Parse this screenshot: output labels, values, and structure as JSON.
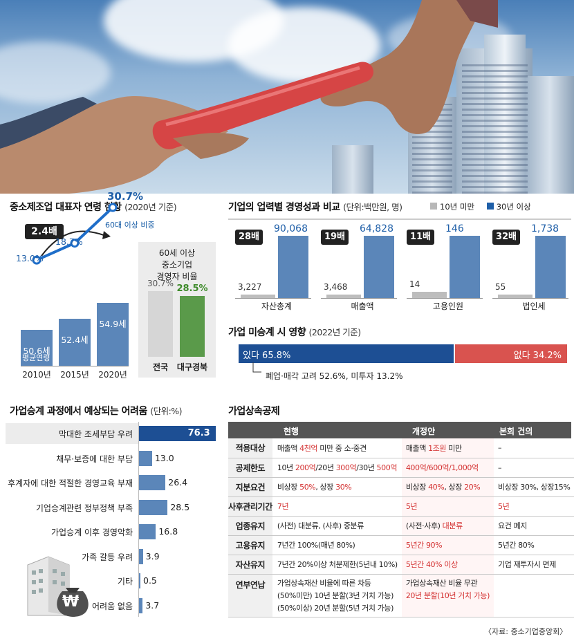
{
  "age_chart": {
    "title": "중소제조업 대표자 연령 현황",
    "title_note": "(2020년 기준)",
    "multiplier": "2.4배",
    "years": [
      "2010년",
      "2015년",
      "2020년"
    ],
    "avg_ages": [
      "50.6세",
      "52.4세",
      "54.9세"
    ],
    "avg_label": "평균연령",
    "share_note": "60대 이상 비중",
    "share_labels": [
      "13.0%",
      "18.7%",
      "30.7%"
    ],
    "side_box": {
      "title_lines": [
        "60세 이상",
        "중소기업",
        "경영자 비율"
      ],
      "labels": [
        "30.7%",
        "28.5%"
      ],
      "categories": [
        "전국",
        "대구경북"
      ]
    }
  },
  "compare_chart": {
    "title": "기업의 업력별 경영성과 비교",
    "unit_note": "(단위:백만원, 명)",
    "legend": [
      "10년 미만",
      "30년 이상"
    ],
    "groups": [
      {
        "name": "자산총계",
        "multiplier": "28배",
        "low": "3,227",
        "high": "90,068"
      },
      {
        "name": "매출액",
        "multiplier": "19배",
        "low": "3,468",
        "high": "64,828"
      },
      {
        "name": "고용인원",
        "multiplier": "11배",
        "low": "14",
        "high": "146"
      },
      {
        "name": "법인세",
        "multiplier": "32배",
        "low": "55",
        "high": "1,738"
      }
    ]
  },
  "succession_chart": {
    "title": "가업 미승계 시 영향",
    "title_note": "(2022년 기준)",
    "yes_label": "있다 65.8%",
    "no_label": "없다 34.2%",
    "footnote": "폐업·매각 고려 52.6%, 미투자 13.2%"
  },
  "difficulty_chart": {
    "title": "가업승계 과정에서 예상되는 어려움",
    "unit_note": "(단위:%)",
    "categories": [
      "막대한 조세부담 우려",
      "채무·보증에 대한 부담",
      "후계자에 대한 적절한 경영교육 부재",
      "기업승계관련 정부정책 부족",
      "가업승계 이후 경영악화",
      "가족 갈등 우려",
      "기타",
      "어려움 없음"
    ],
    "value_labels": [
      "76.3",
      "13.0",
      "26.4",
      "28.5",
      "16.8",
      "3.9",
      "0.5",
      "3.7"
    ],
    "won_symbol": "₩"
  },
  "tax_table": {
    "title": "가업상속공제",
    "headers": [
      "현행",
      "개정안",
      "본회 건의"
    ],
    "rows": [
      {
        "label": "적용대상",
        "c1": [
          [
            "매출액 ",
            ""
          ],
          [
            "4천억",
            "r"
          ],
          [
            " 미만 중 소·중견",
            ""
          ]
        ],
        "c2": [
          [
            "매출액 ",
            ""
          ],
          [
            "1조원",
            "r"
          ],
          [
            " 미만",
            ""
          ]
        ],
        "c3": [
          [
            "–",
            ""
          ]
        ]
      },
      {
        "label": "공제한도",
        "c1": [
          [
            "10년 ",
            ""
          ],
          [
            "200억",
            "r"
          ],
          [
            "/20년 ",
            ""
          ],
          [
            "300억",
            "r"
          ],
          [
            "/30년 ",
            ""
          ],
          [
            "500억",
            "r"
          ]
        ],
        "c2": [
          [
            "400억/600억/1,000억",
            "r"
          ]
        ],
        "c3": [
          [
            "–",
            ""
          ]
        ]
      },
      {
        "label": "지분요건",
        "c1": [
          [
            "비상장 ",
            ""
          ],
          [
            "50%",
            "r"
          ],
          [
            ", 상장 ",
            ""
          ],
          [
            "30%",
            "r"
          ]
        ],
        "c2": [
          [
            "비상장 ",
            ""
          ],
          [
            "40%",
            "r"
          ],
          [
            ", 상장 ",
            ""
          ],
          [
            "20%",
            "r"
          ]
        ],
        "c3": [
          [
            "비상장 30%, 상장15%",
            ""
          ]
        ]
      },
      {
        "label": "사후관리기간",
        "c1": [
          [
            "7년",
            "r"
          ]
        ],
        "c2": [
          [
            "5년",
            "r"
          ]
        ],
        "c3": [
          [
            "5년",
            "r"
          ]
        ]
      },
      {
        "label": "업종유지",
        "c1": [
          [
            "(사전) 대분류, (사후) 중분류",
            ""
          ]
        ],
        "c2": [
          [
            "(사전·사후) ",
            ""
          ],
          [
            "대분류",
            "r"
          ]
        ],
        "c3": [
          [
            "요건 폐지",
            ""
          ]
        ]
      },
      {
        "label": "고용유지",
        "c1": [
          [
            "7년간 100%(매년 80%)",
            ""
          ]
        ],
        "c2": [
          [
            "5년간 90%",
            "r"
          ]
        ],
        "c3": [
          [
            "5년간 80%",
            ""
          ]
        ]
      },
      {
        "label": "자산유지",
        "c1": [
          [
            "7년간 20%이상 처분제한(5년내 10%)",
            ""
          ]
        ],
        "c2": [
          [
            "5년간 40% 이상",
            "r"
          ]
        ],
        "c3": [
          [
            "기업 재투자시 면제",
            ""
          ]
        ]
      }
    ],
    "last_row": {
      "label": "연부연납",
      "c1_lines": [
        "가업상속재산 비율에 따른 차등",
        "(50%미만) 10년 분할(3년 거치 가능)",
        "(50%이상) 20년 분할(5년 거치 가능)"
      ],
      "c2_lines": [
        "가업상속재산 비율 무관",
        "20년 분할(10년 거치 가능)"
      ]
    },
    "source": "〈자료: 중소기업중앙회〉"
  },
  "chart_data": [
    {
      "type": "bar",
      "title": "중소제조업 대표자 연령 현황",
      "categories": [
        "2010년",
        "2015년",
        "2020년"
      ],
      "series": [
        {
          "name": "평균연령",
          "values": [
            50.6,
            52.4,
            54.9
          ]
        },
        {
          "name": "60대 이상 비중",
          "values": [
            13.0,
            18.7,
            30.7
          ]
        }
      ]
    },
    {
      "type": "bar",
      "title": "60세 이상 중소기업 경영자 비율",
      "categories": [
        "전국",
        "대구경북"
      ],
      "values": [
        30.7,
        28.5
      ]
    },
    {
      "type": "bar",
      "title": "기업의 업력별 경영성과 비교",
      "categories": [
        "자산총계",
        "매출액",
        "고용인원",
        "법인세"
      ],
      "series": [
        {
          "name": "10년 미만",
          "values": [
            3227,
            3468,
            14,
            55
          ]
        },
        {
          "name": "30년 이상",
          "values": [
            90068,
            64828,
            146,
            1738
          ]
        }
      ]
    },
    {
      "type": "bar",
      "title": "가업 미승계 시 영향",
      "categories": [
        "있다",
        "없다"
      ],
      "values": [
        65.8,
        34.2
      ]
    },
    {
      "type": "bar",
      "title": "가업승계 과정에서 예상되는 어려움",
      "categories": [
        "막대한 조세부담 우려",
        "채무·보증에 대한 부담",
        "후계자에 대한 적절한 경영교육 부재",
        "기업승계관련 정부정책 부족",
        "가업승계 이후 경영악화",
        "가족 갈등 우려",
        "기타",
        "어려움 없음"
      ],
      "values": [
        76.3,
        13.0,
        26.4,
        28.5,
        16.8,
        3.9,
        0.5,
        3.7
      ]
    }
  ]
}
